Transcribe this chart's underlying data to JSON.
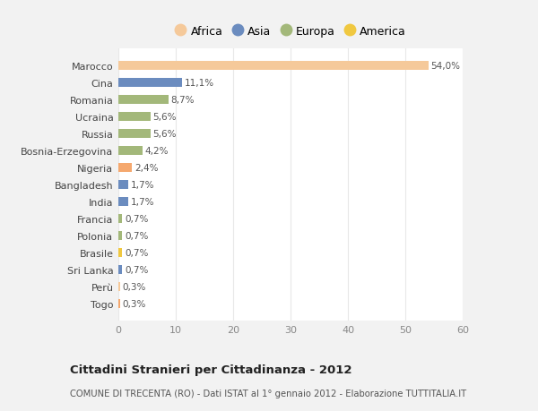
{
  "countries": [
    "Togo",
    "Perù",
    "Sri Lanka",
    "Brasile",
    "Polonia",
    "Francia",
    "India",
    "Bangladesh",
    "Nigeria",
    "Bosnia-Erzegovina",
    "Russia",
    "Ucraina",
    "Romania",
    "Cina",
    "Marocco"
  ],
  "values": [
    0.3,
    0.3,
    0.7,
    0.7,
    0.7,
    0.7,
    1.7,
    1.7,
    2.4,
    4.2,
    5.6,
    5.6,
    8.7,
    11.1,
    54.0
  ],
  "labels": [
    "0,3%",
    "0,3%",
    "0,7%",
    "0,7%",
    "0,7%",
    "0,7%",
    "1,7%",
    "1,7%",
    "2,4%",
    "4,2%",
    "5,6%",
    "5,6%",
    "8,7%",
    "11,1%",
    "54,0%"
  ],
  "colors": [
    "#f5a86e",
    "#f5c99a",
    "#6b8cbf",
    "#f0c840",
    "#a3b87a",
    "#a3b87a",
    "#6b8cbf",
    "#6b8cbf",
    "#f5a86e",
    "#a3b87a",
    "#a3b87a",
    "#a3b87a",
    "#a3b87a",
    "#6b8cbf",
    "#f5c99a"
  ],
  "continent_colors": {
    "Africa": "#f5c99a",
    "Asia": "#6b8cbf",
    "Europa": "#a3b87a",
    "America": "#f0c840"
  },
  "legend_labels": [
    "Africa",
    "Asia",
    "Europa",
    "America"
  ],
  "title": "Cittadini Stranieri per Cittadinanza - 2012",
  "subtitle": "COMUNE DI TRECENTA (RO) - Dati ISTAT al 1° gennaio 2012 - Elaborazione TUTTITALIA.IT",
  "xlim": [
    0,
    60
  ],
  "xticks": [
    0,
    10,
    20,
    30,
    40,
    50,
    60
  ],
  "background_color": "#f2f2f2",
  "plot_background": "#ffffff",
  "grid_color": "#e8e8e8"
}
